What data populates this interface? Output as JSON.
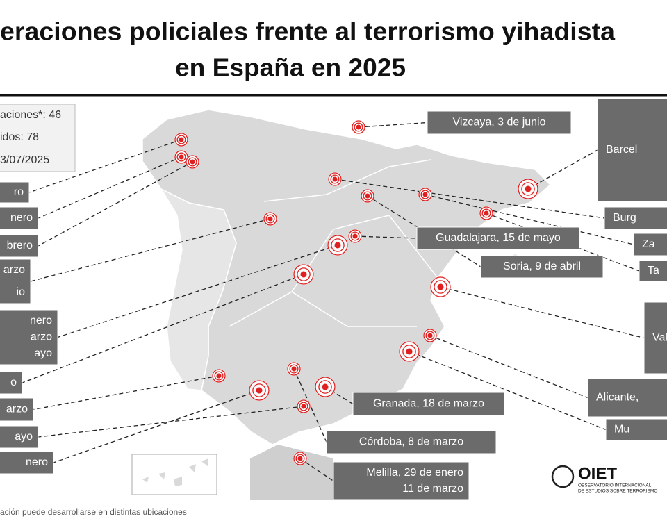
{
  "title": {
    "lines": [
      "eraciones policiales frente al terrorismo yihadista",
      "en España en 2025"
    ]
  },
  "stats": {
    "lines": [
      "aciones*: 46",
      "idos: 78",
      "3/07/2025"
    ]
  },
  "labels": [
    {
      "lines": [
        "ro"
      ]
    },
    {
      "lines": [
        "nero"
      ]
    },
    {
      "lines": [
        "brero"
      ]
    },
    {
      "lines": [
        "arzo",
        "io"
      ]
    },
    {
      "lines": [
        "nero",
        "arzo",
        "ayo"
      ]
    },
    {
      "lines": [
        "o"
      ]
    },
    {
      "lines": [
        "arzo"
      ]
    },
    {
      "lines": [
        "ayo"
      ]
    },
    {
      "lines": [
        "nero"
      ]
    },
    {
      "lines": [
        "Vizcaya, 3 de junio"
      ]
    },
    {
      "lines": [
        "Barcel"
      ]
    },
    {
      "lines": [
        "Burg"
      ]
    },
    {
      "lines": [
        "Za"
      ]
    },
    {
      "lines": [
        "Ta"
      ]
    },
    {
      "lines": [
        "Vale"
      ]
    },
    {
      "lines": [
        "Alicante,"
      ]
    },
    {
      "lines": [
        "Mu"
      ]
    },
    {
      "lines": [
        "Guadalajara, 15 de mayo"
      ]
    },
    {
      "lines": [
        "Soria, 9 de abril"
      ]
    },
    {
      "lines": [
        "Granada, 18 de marzo"
      ]
    },
    {
      "lines": [
        "Córdoba, 8 de marzo"
      ]
    },
    {
      "lines": [
        "Melilla, 29 de enero",
        "11 de marzo"
      ]
    }
  ],
  "footnote": "ación puede desarrollarse en distintas ubicaciones",
  "logo": {
    "name": "OIET",
    "line1": "OBSERVATORIO INTERNACIONAL",
    "line2": "DE ESTUDIOS SOBRE TERRORISMO"
  }
}
